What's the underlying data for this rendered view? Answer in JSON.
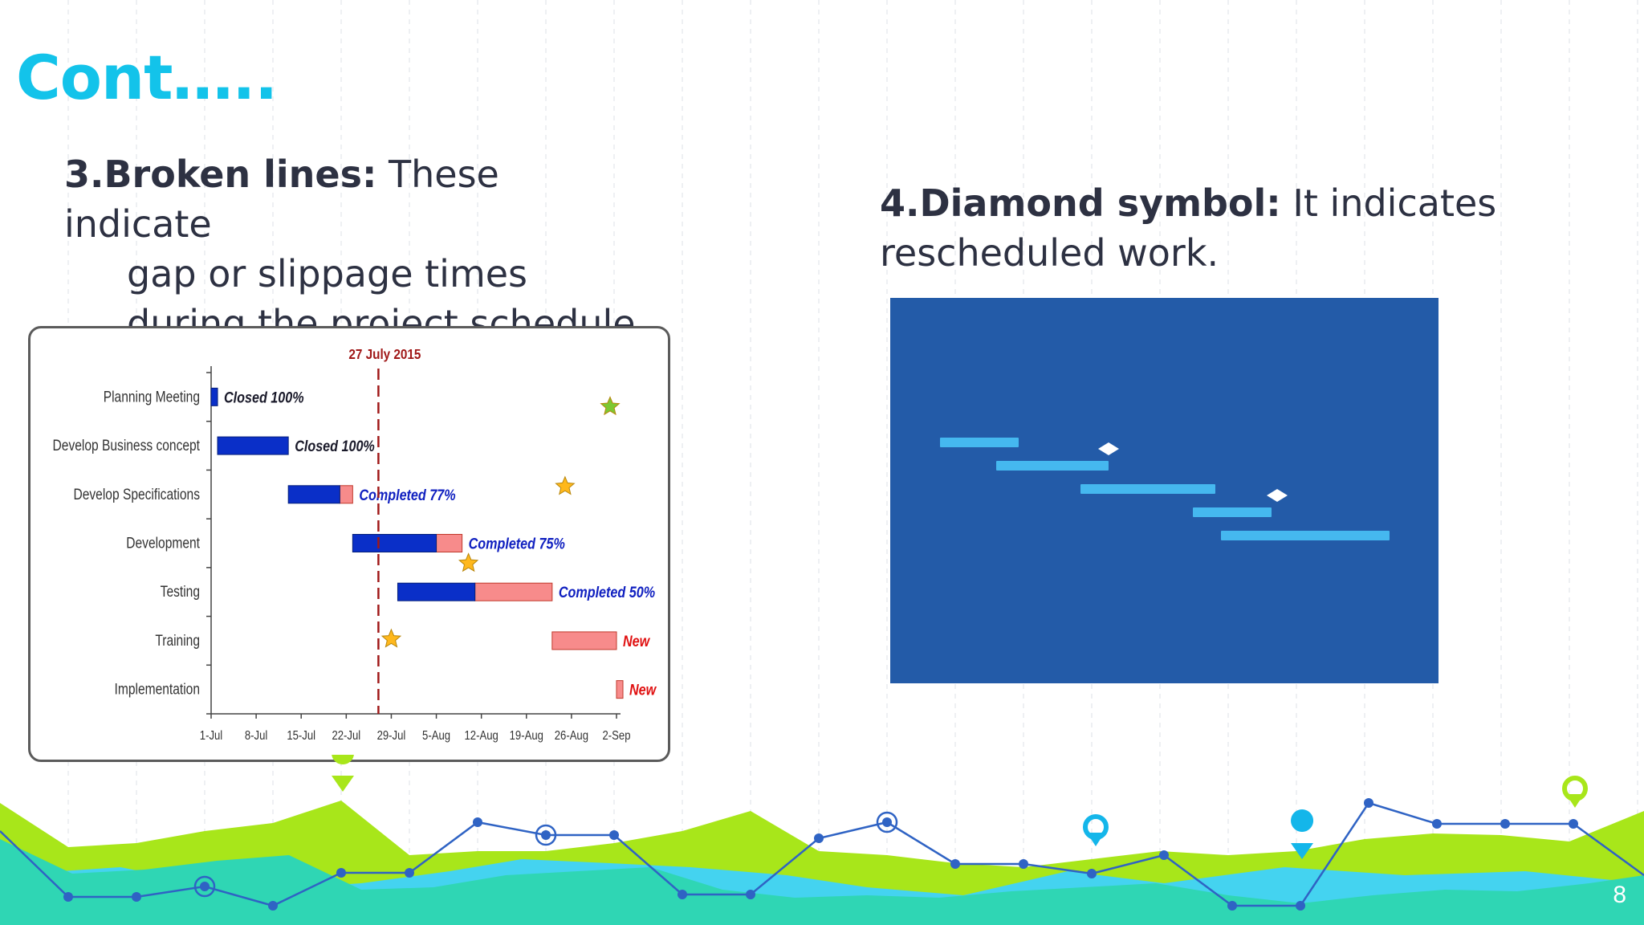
{
  "slide": {
    "title": "Cont…..",
    "page_number": "8"
  },
  "bullet3": {
    "heading": "3.Broken lines:",
    "line1": " These indicate",
    "line2": "gap or slippage times",
    "line3": "during the project schedule"
  },
  "bullet4": {
    "heading": "4.Diamond symbol:",
    "line1": " It indicates",
    "line2": "rescheduled work."
  },
  "chart_data": [
    {
      "type": "bar",
      "subtype": "gantt",
      "today_label": "27 July 2015",
      "today_value": "2015-07-27",
      "x_tick_labels": [
        "1-Jul",
        "8-Jul",
        "15-Jul",
        "22-Jul",
        "29-Jul",
        "5-Aug",
        "12-Aug",
        "19-Aug",
        "26-Aug",
        "2-Sep"
      ],
      "x_range": [
        "2015-07-01",
        "2015-09-02"
      ],
      "colors": {
        "done": "#0a2fc8",
        "remaining": "#f78b8b",
        "today_line": "#a01818",
        "status_blue": "#1020c0",
        "status_red": "#e01010"
      },
      "tasks": [
        {
          "name": "Planning Meeting",
          "start": "2015-07-01",
          "end": "2015-07-02",
          "done_until": "2015-07-02",
          "status": "Closed 100%",
          "status_color": "#1a1a2a"
        },
        {
          "name": "Develop Business concept",
          "start": "2015-07-02",
          "end": "2015-07-13",
          "done_until": "2015-07-13",
          "status": "Closed 100%",
          "status_color": "#1a1a2a"
        },
        {
          "name": "Develop Specifications",
          "start": "2015-07-13",
          "end": "2015-07-23",
          "done_until": "2015-07-21",
          "status": "Completed 77%",
          "status_color": "#1020c0"
        },
        {
          "name": "Development",
          "start": "2015-07-23",
          "end": "2015-08-09",
          "done_until": "2015-08-05",
          "status": "Completed 75%",
          "status_color": "#1020c0"
        },
        {
          "name": "Testing",
          "start": "2015-07-30",
          "end": "2015-08-23",
          "done_until": "2015-08-11",
          "status": "Completed 50%",
          "status_color": "#1020c0"
        },
        {
          "name": "Training",
          "start": "2015-08-23",
          "end": "2015-09-02",
          "done_until": "2015-08-23",
          "status": "New",
          "status_color": "#e01010"
        },
        {
          "name": "Implementation",
          "start": "2015-09-02",
          "end": "2015-09-03",
          "done_until": "2015-09-02",
          "status": "New",
          "status_color": "#e01010"
        }
      ],
      "markers": [
        {
          "task": "Planning Meeting",
          "date": "2015-09-01",
          "shape": "star",
          "color": "#7cc832"
        },
        {
          "task": "Develop Specifications",
          "date": "2015-08-25",
          "shape": "star",
          "color": "#ffb81c"
        },
        {
          "task": "Development",
          "date": "2015-08-10",
          "shape": "star",
          "color": "#ffb81c"
        },
        {
          "task": "Training",
          "date": "2015-07-29",
          "shape": "star",
          "color": "#ffb81c"
        }
      ]
    },
    {
      "type": "bar",
      "subtype": "gantt",
      "colors": {
        "background": "#235ba8",
        "bar": "#45b8ef",
        "diamond": "#ffffff"
      },
      "tasks": [
        {
          "start": 0,
          "end": 14
        },
        {
          "start": 10,
          "end": 30
        },
        {
          "start": 25,
          "end": 49
        },
        {
          "start": 45,
          "end": 59
        },
        {
          "start": 50,
          "end": 80
        }
      ],
      "diamonds": [
        {
          "task_index": 0,
          "at": 30
        },
        {
          "task_index": 2,
          "at": 60
        }
      ],
      "x_range": [
        0,
        80
      ]
    }
  ]
}
